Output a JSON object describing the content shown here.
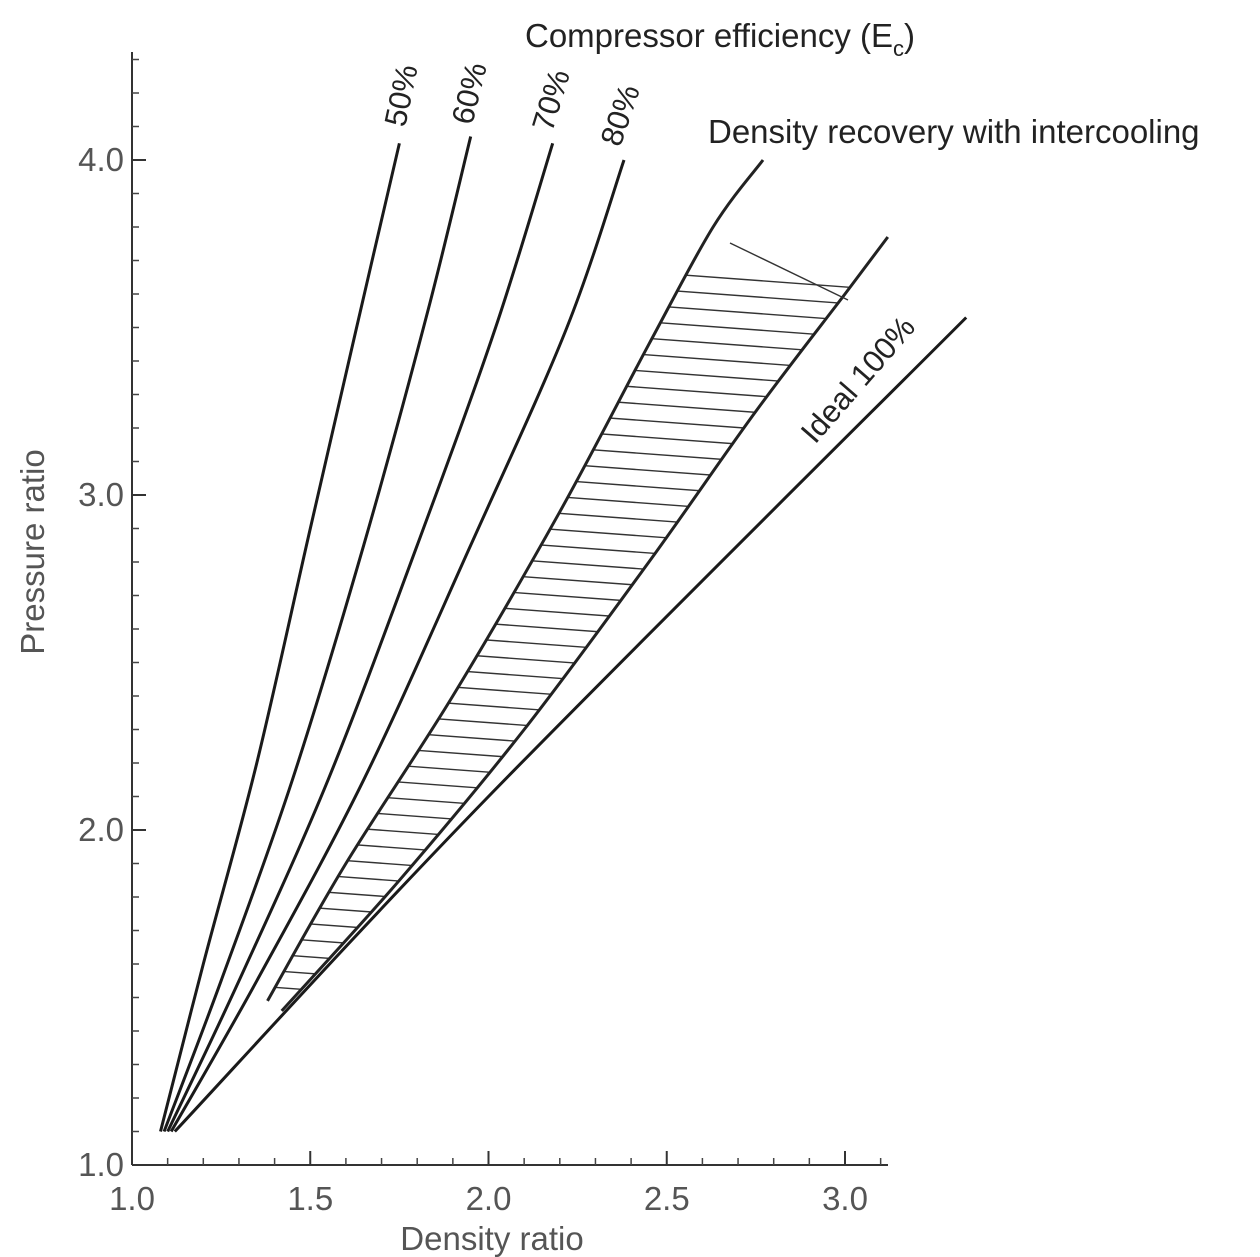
{
  "chart_data": {
    "type": "line",
    "title": "Compressor efficiency (E",
    "title_subscript": "c",
    "title_suffix": ")",
    "xlabel": "Density ratio",
    "ylabel": "Pressure ratio",
    "xlim": [
      1.0,
      3.0
    ],
    "ylim": [
      1.0,
      4.0
    ],
    "x_ticks": [
      {
        "value": 1.0,
        "label": "1.0"
      },
      {
        "value": 1.5,
        "label": "1.5"
      },
      {
        "value": 2.0,
        "label": "2.0"
      },
      {
        "value": 2.5,
        "label": "2.5"
      },
      {
        "value": 3.0,
        "label": "3.0"
      }
    ],
    "y_ticks": [
      {
        "value": 1.0,
        "label": "1.0"
      },
      {
        "value": 2.0,
        "label": "2.0"
      },
      {
        "value": 3.0,
        "label": "3.0"
      },
      {
        "value": 4.0,
        "label": "4.0"
      }
    ],
    "grid": false,
    "series": [
      {
        "name": "50%",
        "x": [
          1.08,
          1.2,
          1.35,
          1.5,
          1.63,
          1.75
        ],
        "y": [
          1.1,
          1.6,
          2.2,
          2.9,
          3.5,
          4.05
        ]
      },
      {
        "name": "60%",
        "x": [
          1.09,
          1.25,
          1.45,
          1.65,
          1.83,
          1.95
        ],
        "y": [
          1.1,
          1.55,
          2.15,
          2.85,
          3.55,
          4.07
        ]
      },
      {
        "name": "70%",
        "x": [
          1.1,
          1.3,
          1.55,
          1.8,
          2.02,
          2.18
        ],
        "y": [
          1.1,
          1.55,
          2.15,
          2.85,
          3.5,
          4.05
        ]
      },
      {
        "name": "80%",
        "x": [
          1.11,
          1.35,
          1.65,
          1.95,
          2.22,
          2.38
        ],
        "y": [
          1.1,
          1.55,
          2.15,
          2.85,
          3.5,
          4.0
        ]
      },
      {
        "name": "Ideal 100%",
        "x": [
          1.12,
          2.0,
          3.34
        ],
        "y": [
          1.1,
          2.1,
          3.53
        ]
      }
    ],
    "intercooling_band": {
      "label": "Density recovery with intercooling",
      "upper": {
        "x": [
          1.38,
          1.6,
          1.9,
          2.2,
          2.45,
          2.63,
          2.77
        ],
        "y": [
          1.49,
          1.9,
          2.4,
          2.95,
          3.45,
          3.8,
          4.0
        ]
      },
      "lower": {
        "x": [
          1.42,
          1.75,
          2.1,
          2.45,
          2.75,
          3.0,
          3.12
        ],
        "y": [
          1.46,
          1.85,
          2.3,
          2.8,
          3.25,
          3.6,
          3.77
        ]
      }
    }
  }
}
